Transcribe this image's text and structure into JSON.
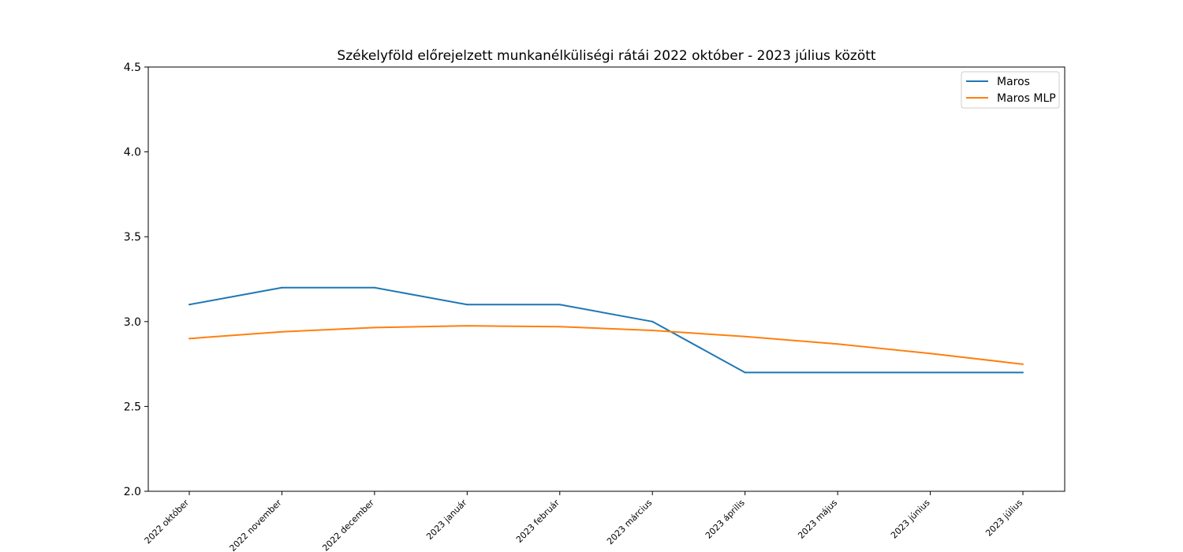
{
  "chart_data": {
    "type": "line",
    "title": "Székelyföld előrejelzett munkanélküliségi rátái 2022 október - 2023 július között",
    "xlabel": "",
    "ylabel": "",
    "categories": [
      "2022 október",
      "2022 november",
      "2022 december",
      "2023 január",
      "2023 február",
      "2023 március",
      "2023 április",
      "2023 május",
      "2023 június",
      "2023 július"
    ],
    "ylim": [
      2.0,
      4.5
    ],
    "yticks": [
      "2.0",
      "2.5",
      "3.0",
      "3.5",
      "4.0",
      "4.5"
    ],
    "grid": false,
    "legend_position": "top-right",
    "series": [
      {
        "name": "Maros",
        "color": "#1f77b4",
        "values": [
          3.1,
          3.2,
          3.2,
          3.1,
          3.1,
          3.0,
          2.7,
          2.7,
          2.7,
          2.7
        ]
      },
      {
        "name": "Maros MLP",
        "color": "#ff7f0e",
        "values": [
          2.9,
          2.94,
          2.965,
          2.975,
          2.97,
          2.948,
          2.912,
          2.868,
          2.812,
          2.749
        ]
      }
    ]
  }
}
